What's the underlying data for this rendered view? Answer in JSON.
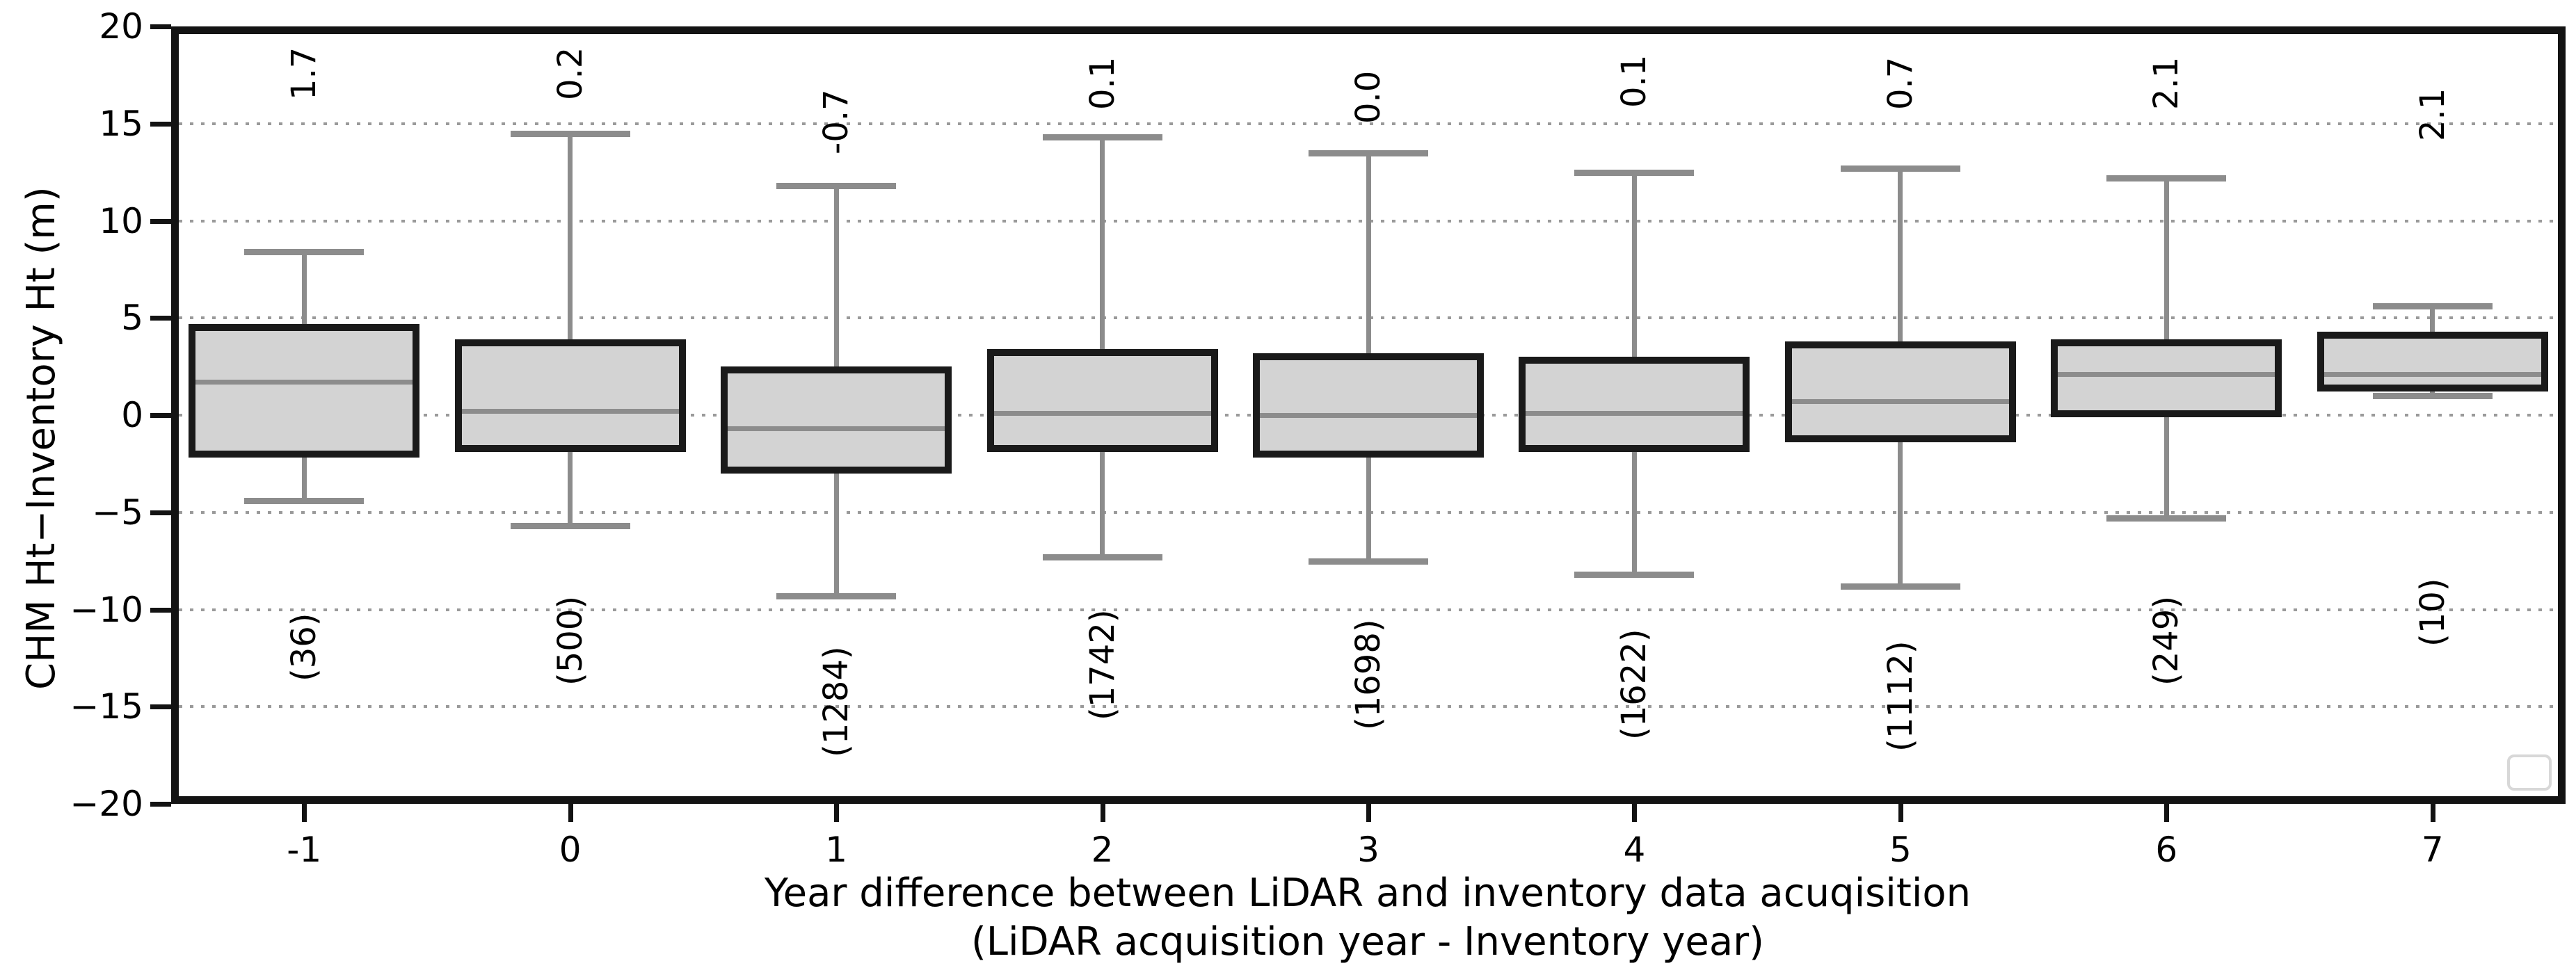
{
  "figure": {
    "ylabel": "CHM Ht−Inventory Ht (m)",
    "xlabel_line1": "Year difference between LiDAR and inventory data acuqisition",
    "xlabel_line2": "(LiDAR acquisition year - Inventory year)"
  },
  "chart_data": {
    "type": "boxplot",
    "title": "",
    "xlabel": "Year difference between LiDAR and inventory data acuqisition (LiDAR acquisition year - Inventory year)",
    "ylabel": "CHM Ht−Inventory Ht (m)",
    "ylim": [
      -20,
      20
    ],
    "ytick_values": [
      20,
      15,
      10,
      5,
      0,
      -5,
      -10,
      -15,
      -20
    ],
    "ytick_labels": [
      "20",
      "15",
      "10",
      "5",
      "0",
      "−5",
      "−10",
      "−15",
      "−20"
    ],
    "grid_values": [
      15,
      10,
      5,
      0,
      -5,
      -10,
      -15
    ],
    "grid_style": "horizontal dotted gray lines",
    "legend": {
      "present": true,
      "empty": true,
      "position": "lower right"
    },
    "categories": [
      "-1",
      "0",
      "1",
      "2",
      "3",
      "4",
      "5",
      "6",
      "7"
    ],
    "boxes": [
      {
        "category": "-1",
        "n": 36,
        "count_label": "(36)",
        "median_annotation": "1.7",
        "whisker_low": -4.4,
        "q1": -2.2,
        "median": 1.7,
        "q3": 4.7,
        "whisker_high": 8.4,
        "annotation_bottom_y": 16.2,
        "count_bottom_y": -13.7
      },
      {
        "category": "0",
        "n": 500,
        "count_label": "(500)",
        "median_annotation": "0.2",
        "whisker_low": -5.7,
        "q1": -1.9,
        "median": 0.2,
        "q3": 3.9,
        "whisker_high": 14.5,
        "annotation_bottom_y": 16.2,
        "count_bottom_y": -13.9
      },
      {
        "category": "1",
        "n": 1284,
        "count_label": "(1284)",
        "median_annotation": "-0.7",
        "whisker_low": -9.3,
        "q1": -3.0,
        "median": -0.7,
        "q3": 2.5,
        "whisker_high": 11.8,
        "annotation_bottom_y": 13.4,
        "count_bottom_y": -17.6
      },
      {
        "category": "2",
        "n": 1742,
        "count_label": "(1742)",
        "median_annotation": "0.1",
        "whisker_low": -7.3,
        "q1": -1.9,
        "median": 0.1,
        "q3": 3.4,
        "whisker_high": 14.3,
        "annotation_bottom_y": 15.7,
        "count_bottom_y": -15.7
      },
      {
        "category": "3",
        "n": 1698,
        "count_label": "(1698)",
        "median_annotation": "0.0",
        "whisker_low": -7.5,
        "q1": -2.2,
        "median": 0.0,
        "q3": 3.2,
        "whisker_high": 13.5,
        "annotation_bottom_y": 15.0,
        "count_bottom_y": -16.2
      },
      {
        "category": "4",
        "n": 1622,
        "count_label": "(1622)",
        "median_annotation": "0.1",
        "whisker_low": -8.2,
        "q1": -1.9,
        "median": 0.1,
        "q3": 3.0,
        "whisker_high": 12.5,
        "annotation_bottom_y": 15.8,
        "count_bottom_y": -16.7
      },
      {
        "category": "5",
        "n": 1112,
        "count_label": "(1112)",
        "median_annotation": "0.7",
        "whisker_low": -8.8,
        "q1": -1.4,
        "median": 0.7,
        "q3": 3.8,
        "whisker_high": 12.7,
        "annotation_bottom_y": 15.7,
        "count_bottom_y": -17.3
      },
      {
        "category": "6",
        "n": 249,
        "count_label": "(249)",
        "median_annotation": "2.1",
        "whisker_low": -5.3,
        "q1": -0.1,
        "median": 2.1,
        "q3": 3.9,
        "whisker_high": 12.2,
        "annotation_bottom_y": 15.7,
        "count_bottom_y": -13.9
      },
      {
        "category": "7",
        "n": 10,
        "count_label": "(10)",
        "median_annotation": "2.1",
        "whisker_low": 1.0,
        "q1": 1.2,
        "median": 2.1,
        "q3": 4.3,
        "whisker_high": 5.6,
        "annotation_bottom_y": 14.1,
        "count_bottom_y": -11.9
      }
    ],
    "colors": {
      "box_fill": "#d3d3d3",
      "box_edge": "#1a1a1a",
      "whisker": "#8c8c8c",
      "median": "#8c8c8c",
      "grid": "#9a9a9a",
      "spine": "#131313",
      "text": "#000000"
    }
  }
}
